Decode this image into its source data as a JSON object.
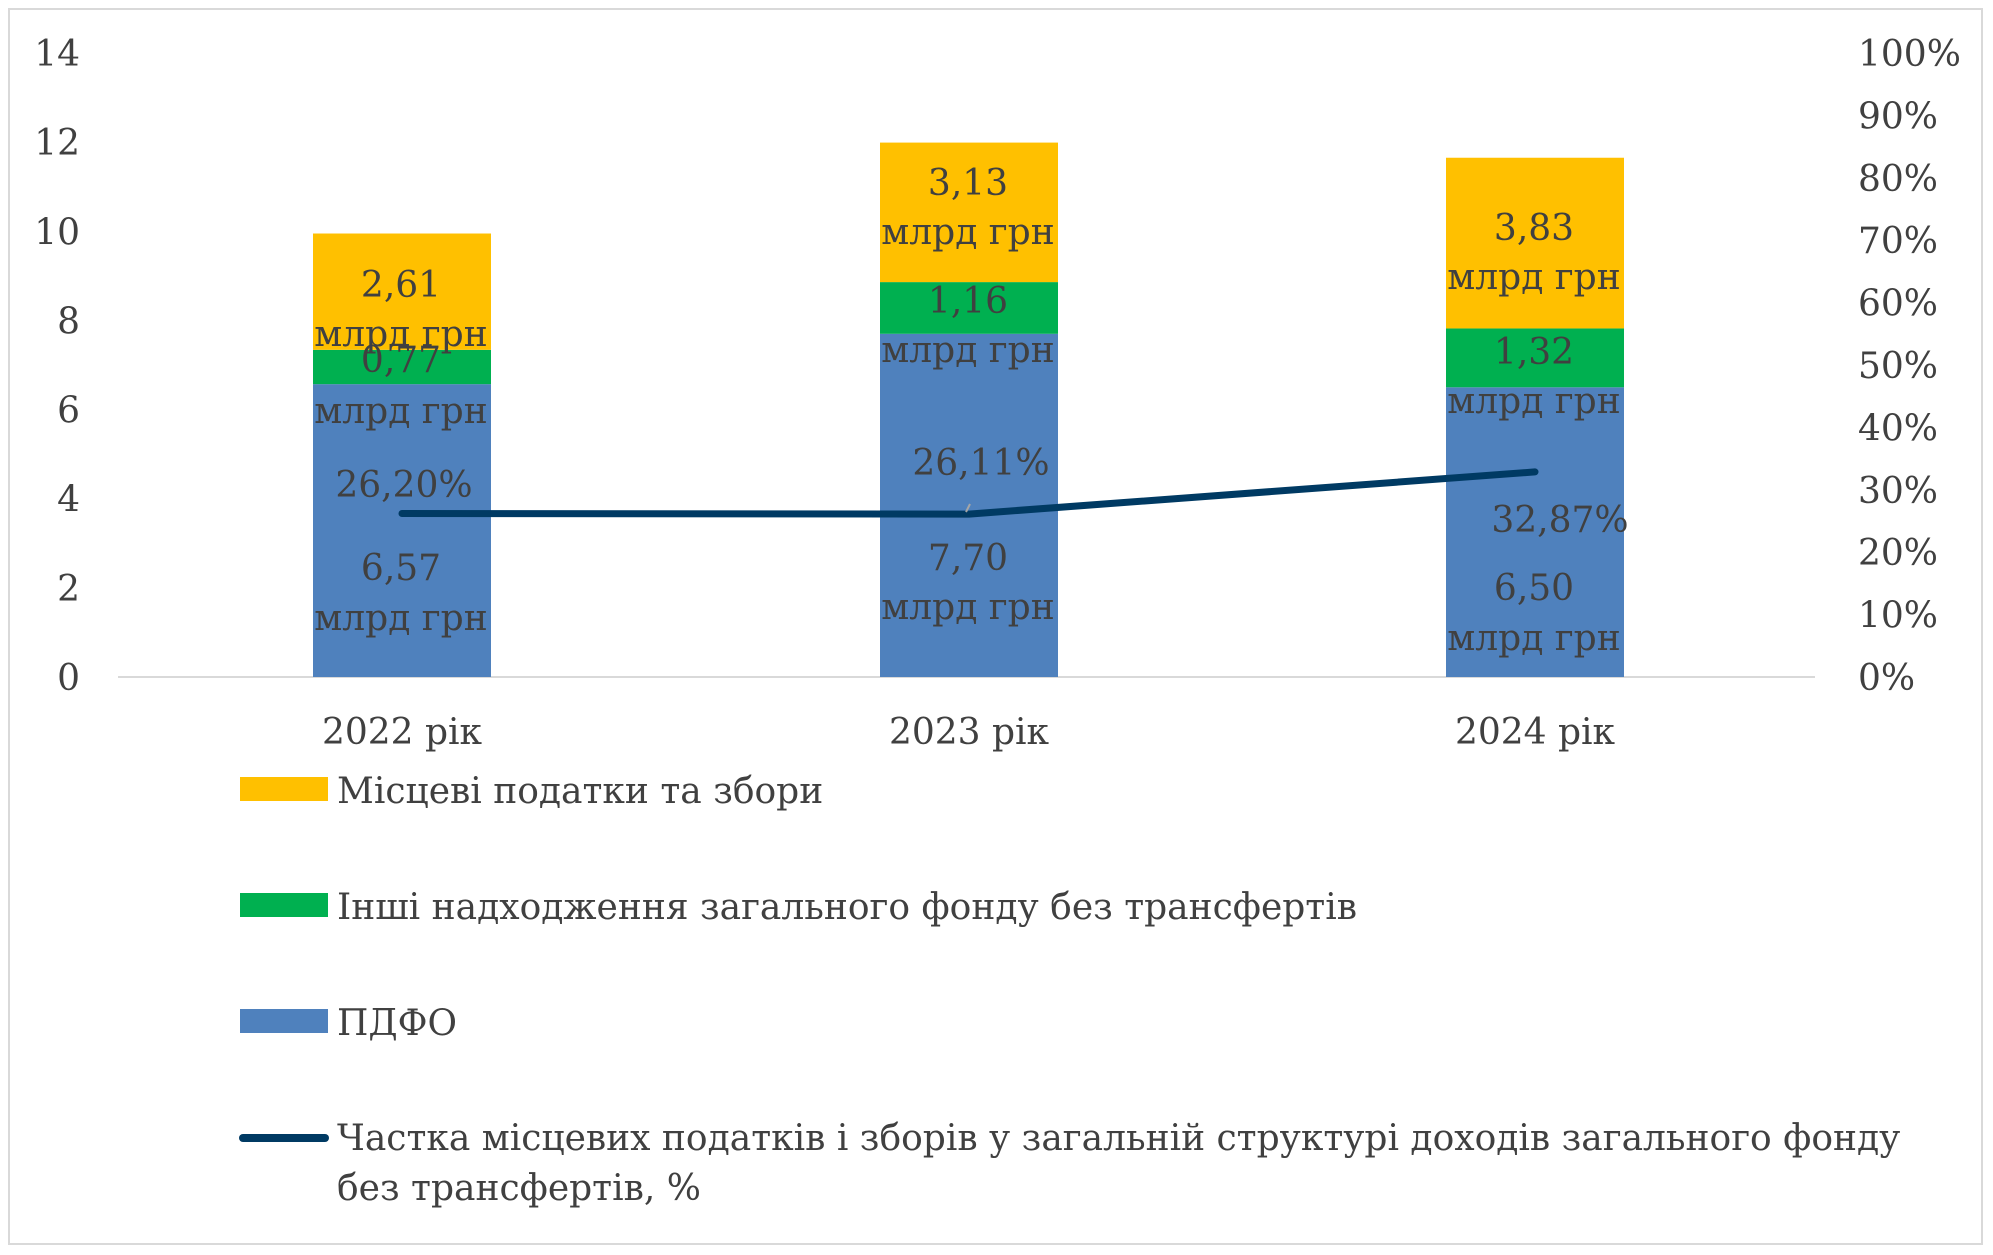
{
  "chart_data": {
    "type": "bar",
    "stacked": true,
    "categories": [
      "2022 рік",
      "2023 рік",
      "2024 рік"
    ],
    "series": [
      {
        "name": "ПДФО",
        "color": "#4f81bd",
        "values": [
          6.57,
          7.7,
          6.5
        ],
        "labels": [
          [
            "6,57",
            "млрд грн"
          ],
          [
            "7,70",
            "млрд грн"
          ],
          [
            "6,50",
            "млрд грн"
          ]
        ]
      },
      {
        "name": "Інші надходження загального фонду без трансфертів",
        "color": "#00b050",
        "values": [
          0.77,
          1.16,
          1.32
        ],
        "labels": [
          [
            "0,77",
            "млрд грн"
          ],
          [
            "1,16",
            "млрд грн"
          ],
          [
            "1,32",
            "млрд грн"
          ]
        ]
      },
      {
        "name": "Місцеві податки та збори",
        "color": "#ffc000",
        "values": [
          2.61,
          3.13,
          3.83
        ],
        "labels": [
          [
            "2,61",
            "млрд грн"
          ],
          [
            "3,13",
            "млрд грн"
          ],
          [
            "3,83",
            "млрд грн"
          ]
        ]
      }
    ],
    "line": {
      "name": "Частка місцевих податків і зборів у загальній структурі доходів загального фонду без трансфертів, %",
      "color": "#003a63",
      "axis": "secondary",
      "values": [
        26.2,
        26.11,
        32.87
      ],
      "labels": [
        "26,20%",
        "26,11%",
        "32,87%"
      ]
    },
    "y_axis": {
      "min": 0,
      "max": 14,
      "step": 2,
      "ticks": [
        "0",
        "2",
        "4",
        "6",
        "8",
        "10",
        "12",
        "14"
      ]
    },
    "y2_axis": {
      "min": 0,
      "max": 100,
      "step": 10,
      "ticks": [
        "0%",
        "10%",
        "20%",
        "30%",
        "40%",
        "50%",
        "60%",
        "70%",
        "80%",
        "90%",
        "100%"
      ]
    },
    "legend": {
      "placement": "bottom",
      "order": [
        "Місцеві податки та збори",
        "Інші надходження загального фонду без трансфертів",
        "ПДФО",
        "Частка місцевих податків і зборів у загальній структурі доходів загального фонду без трансфертів, %"
      ],
      "line_lines": [
        "Частка місцевих податків і зборів у загальній структурі доходів загального фонду",
        "без трансфертів, %"
      ]
    },
    "grid": false,
    "title": ""
  }
}
